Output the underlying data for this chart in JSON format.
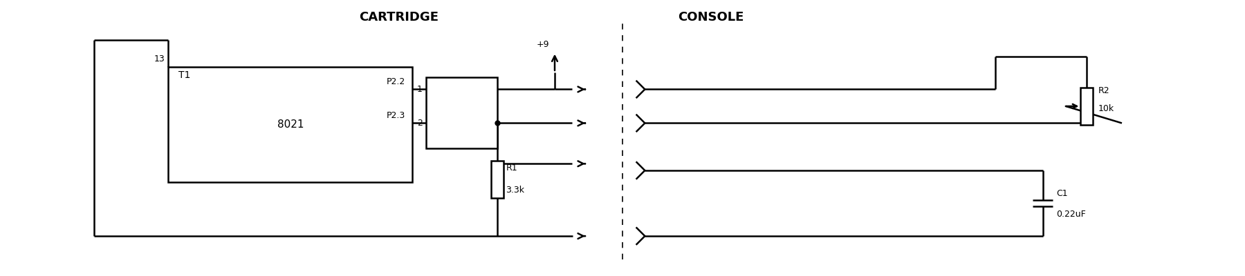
{
  "bg_color": "#ffffff",
  "lc": "#000000",
  "lw": 1.8,
  "title_cartridge": "CARTRIDGE",
  "title_console": "CONSOLE",
  "label_T1": "T1",
  "label_8021": "8021",
  "label_13": "13",
  "label_P22": "P2.2",
  "label_P23": "P2.3",
  "label_1": "1",
  "label_2": "2",
  "label_R1": "R1",
  "label_R1_val": "3.3k",
  "label_plus9": "+9",
  "label_R2": "R2",
  "label_R2_val": "10k",
  "label_C1": "C1",
  "label_C1_val": "0.22uF",
  "fs": 10,
  "fs_title": 13
}
